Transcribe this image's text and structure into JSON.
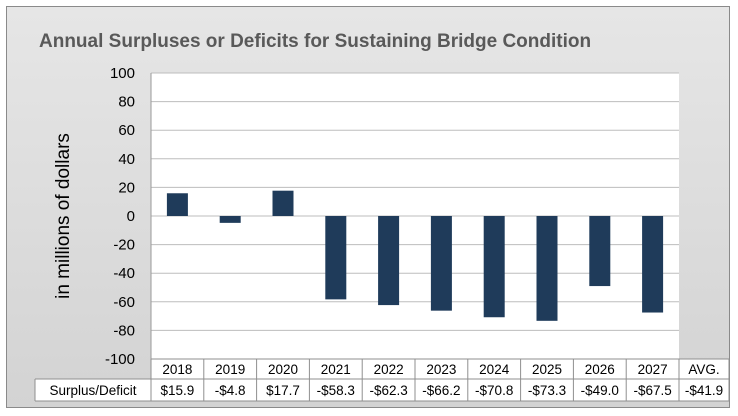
{
  "chart_data": {
    "type": "bar",
    "title": "Annual Surpluses or Deficits for Sustaining Bridge Condition",
    "ylabel": "in millions of dollars",
    "xlabel": "",
    "ylim": [
      -100,
      100
    ],
    "yticks": [
      100,
      80,
      60,
      40,
      20,
      0,
      -20,
      -40,
      -60,
      -80,
      -100
    ],
    "grid": true,
    "categories": [
      "2018",
      "2019",
      "2020",
      "2021",
      "2022",
      "2023",
      "2024",
      "2025",
      "2026",
      "2027"
    ],
    "series": [
      {
        "values": [
          15.9,
          -4.8,
          17.7,
          -58.3,
          -62.3,
          -66.2,
          -70.8,
          -73.3,
          -49.0,
          -67.5
        ],
        "color": "#1f3b5a"
      }
    ],
    "table": {
      "row_label": "Surplus/Deficit",
      "values": [
        "$15.9",
        "-$4.8",
        "$17.7",
        "-$58.3",
        "-$62.3",
        "-$66.2",
        "-$70.8",
        "-$73.3",
        "-$49.0",
        "-$67.5"
      ],
      "avg_header": "AVG.",
      "avg_value": "-$41.9"
    }
  }
}
